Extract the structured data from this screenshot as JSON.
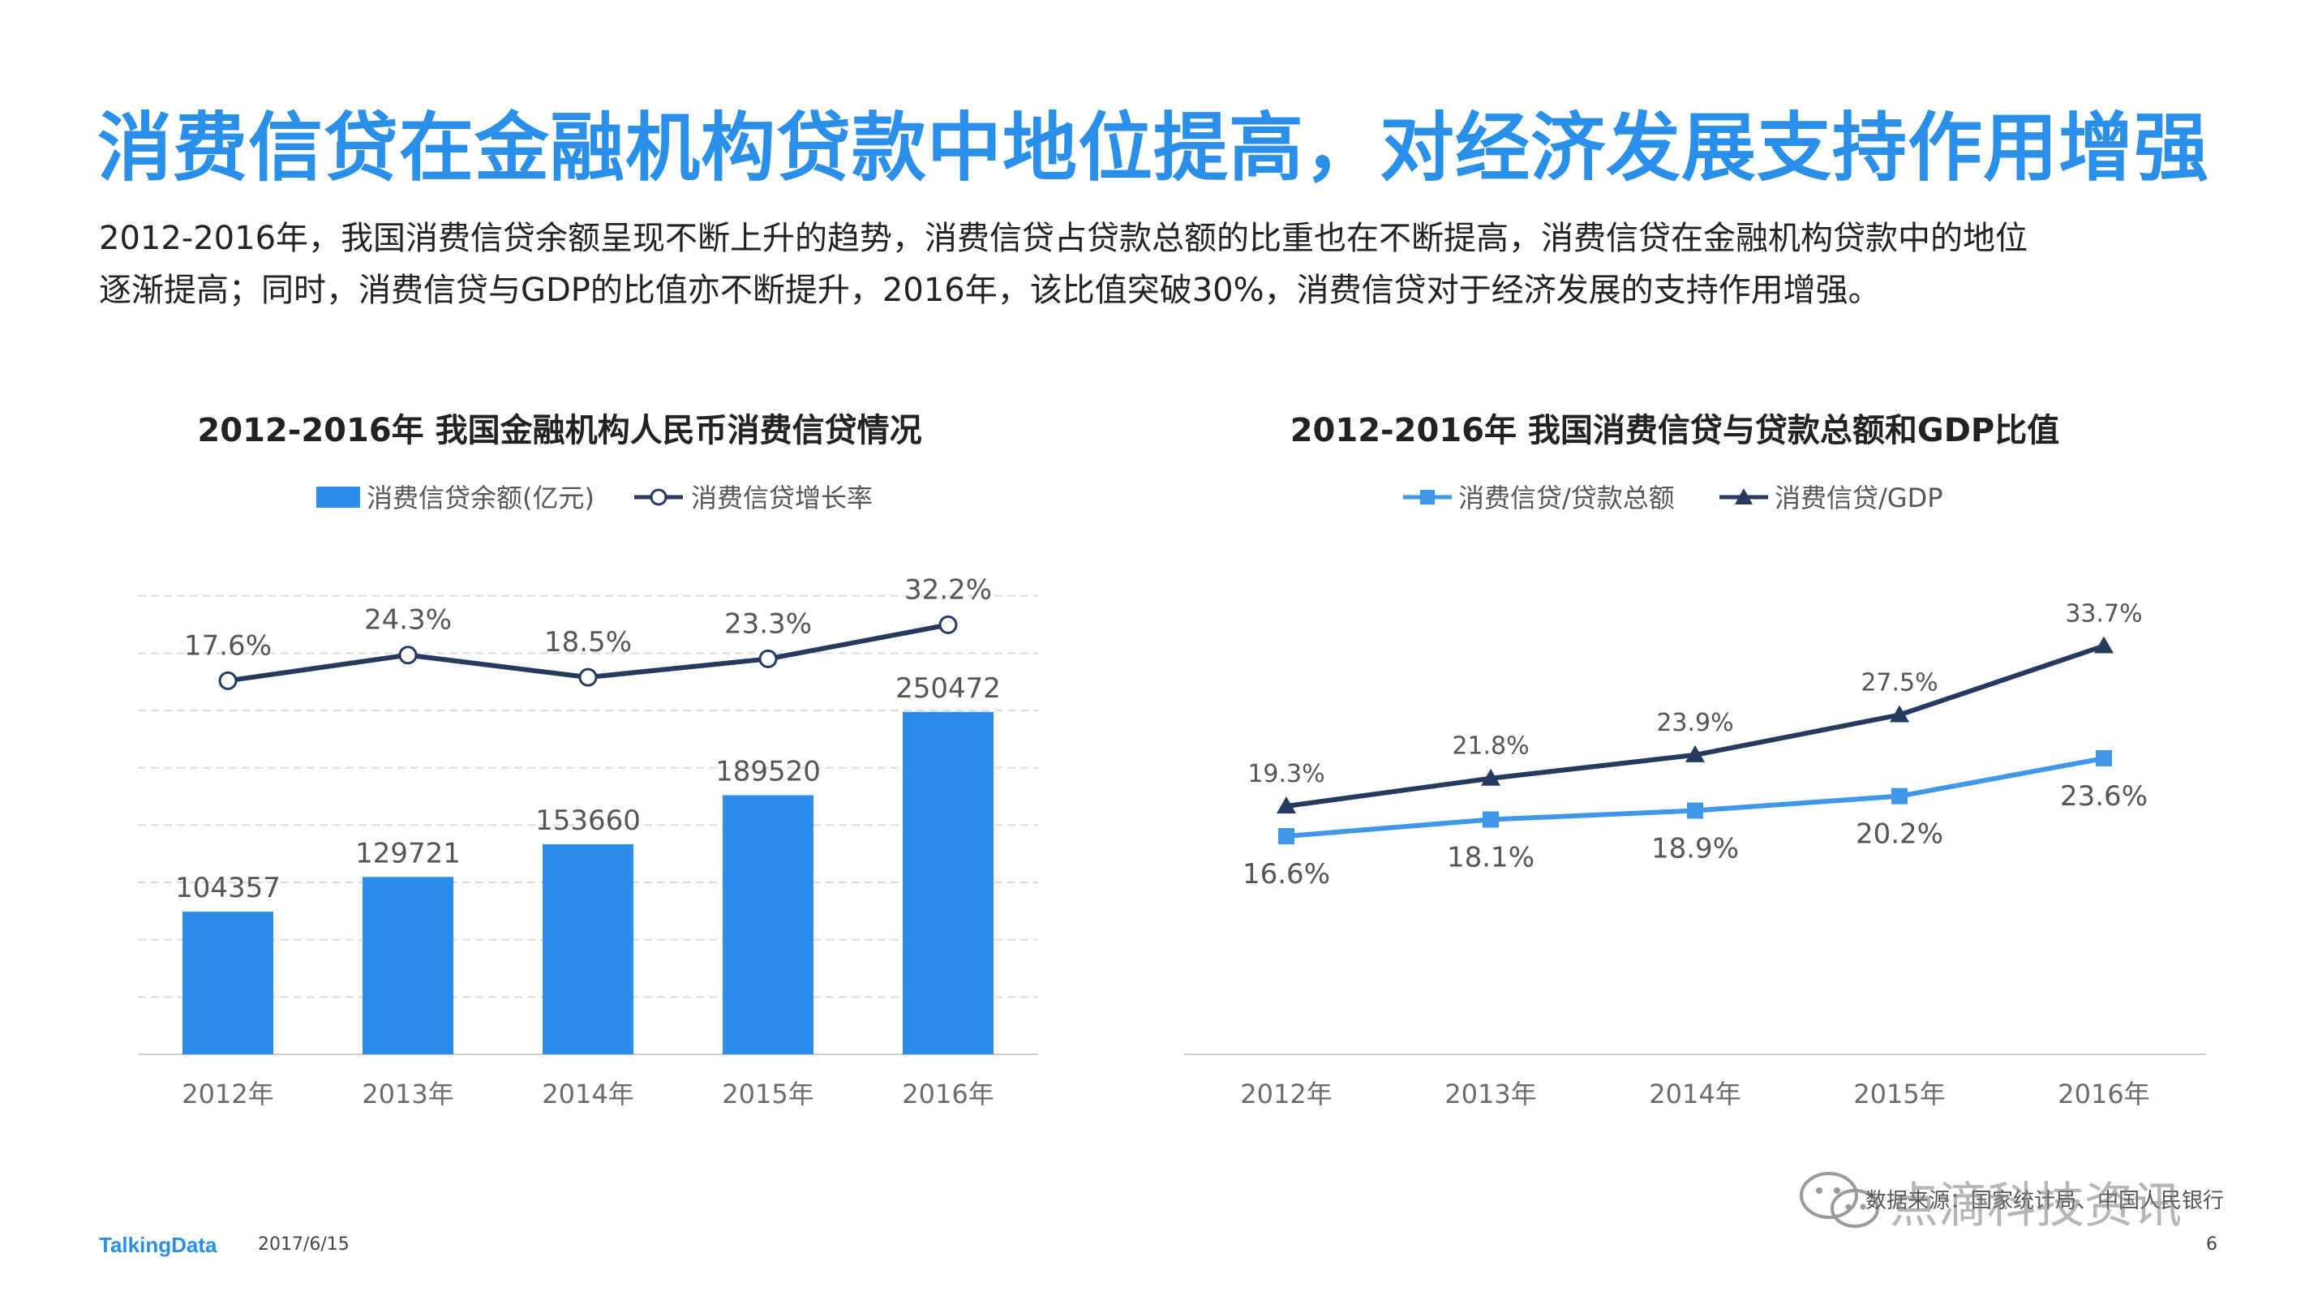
{
  "page": {
    "title": "消费信贷在金融机构贷款中地位提高，对经济发展支持作用增强",
    "description_lines": [
      "2012-2016年，我国消费信贷余额呈现不断上升的趋势，消费信贷占贷款总额的比重也在不断提高，消费信贷在金融机构贷款中的地位",
      "逐渐提高；同时，消费信贷与GDP的比值亦不断提升，2016年，该比值突破30%，消费信贷对于经济发展的支持作用增强。"
    ],
    "footer_logo": "TalkingData",
    "footer_date": "2017/6/15",
    "page_number": "6",
    "watermark_source": "数据来源：国家统计局、中国人民银行",
    "watermark_text": "点滴科技资讯",
    "watermark_icon": "wechat-icon"
  },
  "colors": {
    "title_blue": "#2a8fe8",
    "bar_blue": "#2b8de9",
    "navy_line": "#253a5e",
    "light_blue_line": "#3f97e9",
    "grid": "#dddddd",
    "axis_text": "#6b6b6b"
  },
  "chart_data": [
    {
      "type": "bar",
      "title": "2012-2016年 我国金融机构人民币消费信贷情况",
      "categories": [
        "2012年",
        "2013年",
        "2014年",
        "2015年",
        "2016年"
      ],
      "series": [
        {
          "name": "消费信贷余额(亿元)",
          "type": "bar",
          "values": [
            104357,
            129721,
            153660,
            189520,
            250472
          ],
          "labels": [
            "104357",
            "129721",
            "153660",
            "189520",
            "250472"
          ]
        },
        {
          "name": "消费信贷增长率",
          "type": "line",
          "marker": "circle",
          "values": [
            17.6,
            24.3,
            18.5,
            23.3,
            32.2
          ],
          "labels": [
            "17.6%",
            "24.3%",
            "18.5%",
            "23.3%",
            "32.2%"
          ]
        }
      ],
      "ylim_bar": [
        0,
        350000
      ],
      "ylim_rate": [
        -80,
        45
      ],
      "grid": true,
      "legend": "top-center"
    },
    {
      "type": "line",
      "title": "2012-2016年 我国消费信贷与贷款总额和GDP比值",
      "categories": [
        "2012年",
        "2013年",
        "2014年",
        "2015年",
        "2016年"
      ],
      "series": [
        {
          "name": "消费信贷/贷款总额",
          "marker": "square",
          "values": [
            16.6,
            18.1,
            18.9,
            20.2,
            23.6
          ],
          "labels": [
            "16.6%",
            "18.1%",
            "18.9%",
            "20.2%",
            "23.6%"
          ]
        },
        {
          "name": "消费信贷/GDP",
          "marker": "triangle",
          "values": [
            19.3,
            21.8,
            23.9,
            27.5,
            33.7
          ],
          "labels": [
            "19.3%",
            "21.8%",
            "23.9%",
            "27.5%",
            "33.7%"
          ]
        }
      ],
      "ylim": [
        -3,
        40
      ],
      "grid": false,
      "legend": "top-center"
    }
  ]
}
